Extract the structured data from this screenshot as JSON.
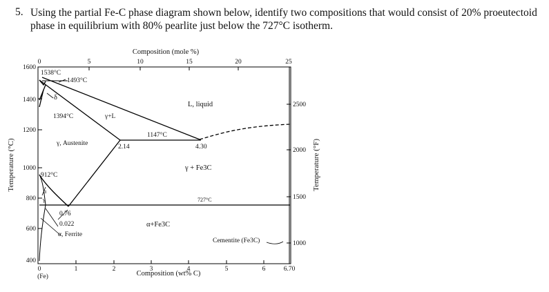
{
  "question": {
    "number": "5.",
    "text": "Using the partial Fe-C phase diagram shown below, identify two compositions that would consist of 20% proeutectoid phase in equilibrium with 80% pearlite just below the 727°C isotherm."
  },
  "diagram": {
    "top_axis_title": "Composition (mole %)",
    "top_ticks": [
      "0",
      "5",
      "10",
      "15",
      "20",
      "25"
    ],
    "bottom_axis_title": "Composition (wt% C)",
    "bottom_ticks": [
      "0",
      "1",
      "2",
      "3",
      "4",
      "5",
      "6",
      "6.70"
    ],
    "fe_label": "(Fe)",
    "left_axis_title": "Temperature (°C)",
    "left_ticks": [
      "1600",
      "1400",
      "1200",
      "1000",
      "800",
      "600",
      "400"
    ],
    "right_axis_title": "Temperature (°F)",
    "right_ticks": [
      "2500",
      "2000",
      "1500",
      "1000"
    ],
    "labels": {
      "t1538": "1538°C",
      "t1493": "1493°C",
      "delta": "δ",
      "t1394": "1394°C",
      "gamma_l": "γ+L",
      "liquid": "L, liquid",
      "t1147": "1147°C",
      "c214": "2.14",
      "c430": "4.30",
      "austenite": "γ, Austenite",
      "t912": "912°C",
      "gamma_fe3c": "γ + Fe3C",
      "t727": "727°C",
      "alpha_small": "α",
      "gamma_small": "γ",
      "c076": "0.76",
      "c0022": "0.022",
      "ferrite": "α, Ferrite",
      "alpha_fe3c": "α+Fe3C",
      "cementite": "Cementite (Fe3C)"
    }
  }
}
